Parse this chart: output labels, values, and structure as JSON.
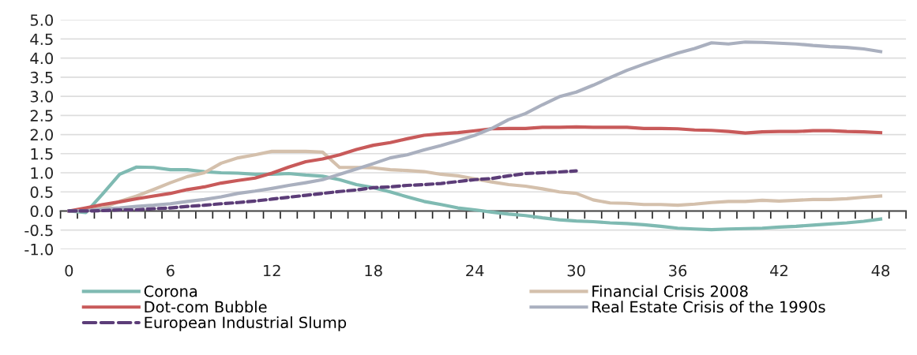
{
  "chart_data": {
    "type": "line",
    "x": [
      0,
      1,
      2,
      3,
      4,
      5,
      6,
      7,
      8,
      9,
      10,
      11,
      12,
      13,
      14,
      15,
      16,
      17,
      18,
      19,
      20,
      21,
      22,
      23,
      24,
      25,
      26,
      27,
      28,
      29,
      30,
      31,
      32,
      33,
      34,
      35,
      36,
      37,
      38,
      39,
      40,
      41,
      42,
      43,
      44,
      45,
      46,
      47,
      48
    ],
    "series": [
      {
        "name": "Corona",
        "color": "#7fbab2",
        "values": [
          0,
          -0.04,
          0.45,
          0.96,
          1.15,
          1.14,
          1.08,
          1.08,
          1.03,
          1.0,
          0.99,
          0.96,
          0.96,
          0.98,
          0.94,
          0.91,
          0.82,
          0.69,
          0.61,
          0.5,
          0.37,
          0.25,
          0.17,
          0.08,
          0.03,
          -0.03,
          -0.08,
          -0.12,
          -0.18,
          -0.23,
          -0.26,
          -0.28,
          -0.31,
          -0.33,
          -0.36,
          -0.4,
          -0.45,
          -0.47,
          -0.49,
          -0.47,
          -0.46,
          -0.45,
          -0.42,
          -0.4,
          -0.37,
          -0.34,
          -0.31,
          -0.27,
          -0.21
        ]
      },
      {
        "name": "Financial Crisis 2008",
        "color": "#d4c0ac",
        "values": [
          0,
          0.01,
          0.08,
          0.25,
          0.39,
          0.56,
          0.74,
          0.9,
          1.0,
          1.25,
          1.39,
          1.47,
          1.56,
          1.56,
          1.56,
          1.54,
          1.14,
          1.14,
          1.13,
          1.08,
          1.06,
          1.03,
          0.96,
          0.92,
          0.84,
          0.76,
          0.69,
          0.65,
          0.58,
          0.5,
          0.46,
          0.29,
          0.21,
          0.2,
          0.17,
          0.17,
          0.15,
          0.18,
          0.22,
          0.25,
          0.25,
          0.28,
          0.26,
          0.28,
          0.3,
          0.3,
          0.32,
          0.36,
          0.39
        ]
      },
      {
        "name": "Dot-com Bubble",
        "color": "#c85a5a",
        "values": [
          0,
          0.08,
          0.17,
          0.24,
          0.32,
          0.39,
          0.46,
          0.56,
          0.63,
          0.73,
          0.8,
          0.86,
          0.99,
          1.15,
          1.29,
          1.36,
          1.47,
          1.61,
          1.72,
          1.79,
          1.89,
          1.98,
          2.02,
          2.05,
          2.1,
          2.15,
          2.16,
          2.16,
          2.19,
          2.19,
          2.2,
          2.19,
          2.19,
          2.19,
          2.16,
          2.16,
          2.15,
          2.12,
          2.11,
          2.08,
          2.04,
          2.07,
          2.08,
          2.08,
          2.1,
          2.1,
          2.08,
          2.07,
          2.05
        ]
      },
      {
        "name": "Real Estate Crisis of the 1990s",
        "color": "#aab0bf",
        "values": [
          0,
          0.01,
          0.05,
          0.08,
          0.12,
          0.15,
          0.19,
          0.25,
          0.3,
          0.37,
          0.46,
          0.52,
          0.59,
          0.67,
          0.74,
          0.82,
          0.96,
          1.1,
          1.24,
          1.39,
          1.47,
          1.6,
          1.71,
          1.84,
          1.98,
          2.16,
          2.39,
          2.55,
          2.78,
          2.99,
          3.11,
          3.29,
          3.49,
          3.68,
          3.84,
          3.99,
          4.13,
          4.25,
          4.4,
          4.37,
          4.42,
          4.41,
          4.39,
          4.37,
          4.33,
          4.3,
          4.28,
          4.24,
          4.17
        ]
      },
      {
        "name": "European Industrial Slump",
        "color": "#5c3d78",
        "line_style": "dashed",
        "values": [
          0,
          0,
          0.01,
          0.03,
          0.03,
          0.06,
          0.08,
          0.12,
          0.15,
          0.19,
          0.22,
          0.26,
          0.31,
          0.36,
          0.41,
          0.46,
          0.51,
          0.55,
          0.61,
          0.63,
          0.67,
          0.69,
          0.72,
          0.77,
          0.82,
          0.85,
          0.92,
          0.98,
          1.0,
          1.02,
          1.05,
          null,
          null,
          null,
          null,
          null,
          null,
          null,
          null,
          null,
          null,
          null,
          null,
          null,
          null,
          null,
          null,
          null,
          null
        ]
      }
    ],
    "xlim": [
      -0.5,
      49.5
    ],
    "xticks": [
      {
        "value": 0,
        "label": "0"
      },
      {
        "value": 6,
        "label": "6"
      },
      {
        "value": 12,
        "label": "12"
      },
      {
        "value": 18,
        "label": "18"
      },
      {
        "value": 24,
        "label": "24"
      },
      {
        "value": 30,
        "label": "30"
      },
      {
        "value": 36,
        "label": "36"
      },
      {
        "value": 42,
        "label": "42"
      },
      {
        "value": 48,
        "label": "48"
      },
      {
        "value": -0.5,
        "label": null
      },
      {
        "value": 0.5,
        "label": null
      },
      {
        "value": 1.5,
        "label": null
      },
      {
        "value": 2.5,
        "label": null
      },
      {
        "value": 3.5,
        "label": null
      },
      {
        "value": 4.5,
        "label": null
      },
      {
        "value": 5.5,
        "label": null
      },
      {
        "value": 6.5,
        "label": null
      },
      {
        "value": 7.5,
        "label": null
      },
      {
        "value": 8.5,
        "label": null
      },
      {
        "value": 9.5,
        "label": null
      },
      {
        "value": 10.5,
        "label": null
      },
      {
        "value": 11.5,
        "label": null
      },
      {
        "value": 12.5,
        "label": null
      },
      {
        "value": 13.5,
        "label": null
      },
      {
        "value": 14.5,
        "label": null
      },
      {
        "value": 15.5,
        "label": null
      },
      {
        "value": 16.5,
        "label": null
      },
      {
        "value": 17.5,
        "label": null
      },
      {
        "value": 18.5,
        "label": null
      },
      {
        "value": 19.5,
        "label": null
      },
      {
        "value": 20.5,
        "label": null
      },
      {
        "value": 21.5,
        "label": null
      },
      {
        "value": 22.5,
        "label": null
      },
      {
        "value": 23.5,
        "label": null
      },
      {
        "value": 24.5,
        "label": null
      },
      {
        "value": 25.5,
        "label": null
      },
      {
        "value": 26.5,
        "label": null
      },
      {
        "value": 27.5,
        "label": null
      },
      {
        "value": 28.5,
        "label": null
      },
      {
        "value": 29.5,
        "label": null
      },
      {
        "value": 30.5,
        "label": null
      },
      {
        "value": 31.5,
        "label": null
      },
      {
        "value": 32.5,
        "label": null
      },
      {
        "value": 33.5,
        "label": null
      },
      {
        "value": 34.5,
        "label": null
      },
      {
        "value": 35.5,
        "label": null
      },
      {
        "value": 36.5,
        "label": null
      },
      {
        "value": 37.5,
        "label": null
      },
      {
        "value": 38.5,
        "label": null
      },
      {
        "value": 39.5,
        "label": null
      },
      {
        "value": 40.5,
        "label": null
      },
      {
        "value": 41.5,
        "label": null
      },
      {
        "value": 42.5,
        "label": null
      },
      {
        "value": 43.5,
        "label": null
      },
      {
        "value": 44.5,
        "label": null
      },
      {
        "value": 45.5,
        "label": null
      },
      {
        "value": 46.5,
        "label": null
      },
      {
        "value": 47.5,
        "label": null
      },
      {
        "value": 48.5,
        "label": null
      },
      {
        "value": 49.5,
        "label": null
      }
    ],
    "ylim": [
      -1.0,
      5.0
    ],
    "yticks": [
      {
        "value": -1.0,
        "label": "-1.0"
      },
      {
        "value": -0.5,
        "label": "-0.5"
      },
      {
        "value": 0.0,
        "label": "0.0"
      },
      {
        "value": 0.5,
        "label": "0.5"
      },
      {
        "value": 1.0,
        "label": "1.0"
      },
      {
        "value": 1.5,
        "label": "1.5"
      },
      {
        "value": 2.0,
        "label": "2.0"
      },
      {
        "value": 2.5,
        "label": "2.5"
      },
      {
        "value": 3.0,
        "label": "3.0"
      },
      {
        "value": 3.5,
        "label": "3.5"
      },
      {
        "value": 4.0,
        "label": "4.0"
      },
      {
        "value": 4.5,
        "label": "4.5"
      },
      {
        "value": 5.0,
        "label": "5.0"
      }
    ],
    "grid": "y",
    "legend": "bottom",
    "marker": "none",
    "line_style": "solid"
  }
}
